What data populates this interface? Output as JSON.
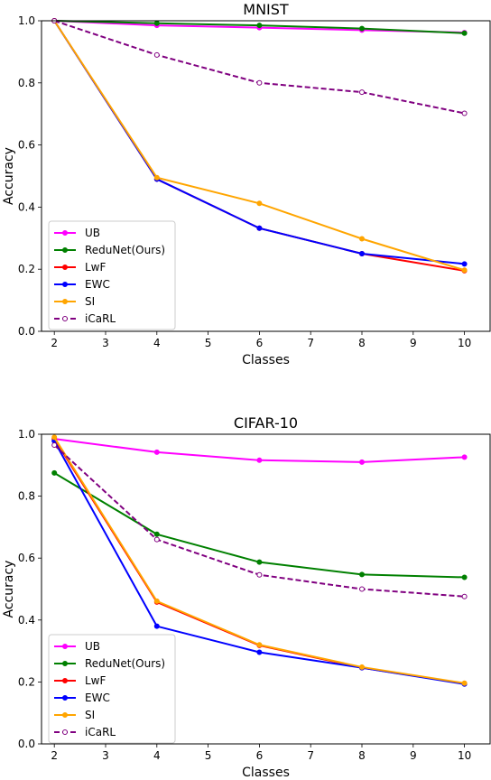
{
  "chart_data": [
    {
      "type": "line",
      "title": "MNIST",
      "xlabel": "Classes",
      "ylabel": "Accuracy",
      "x": [
        2,
        4,
        6,
        8,
        10
      ],
      "xlim": [
        1.75,
        10.5
      ],
      "ylim": [
        0.0,
        1.0
      ],
      "xticks": [
        2,
        3,
        4,
        5,
        6,
        7,
        8,
        9,
        10
      ],
      "yticks": [
        0.0,
        0.2,
        0.4,
        0.6,
        0.8,
        1.0
      ],
      "grid": false,
      "legend_position": "lower-left",
      "series": [
        {
          "name": "UB",
          "color": "#ff00ff",
          "dashed": false,
          "values": [
            1.0,
            0.985,
            0.978,
            0.97,
            0.962
          ]
        },
        {
          "name": "ReduNet(Ours)",
          "color": "#008000",
          "dashed": false,
          "values": [
            1.0,
            0.992,
            0.985,
            0.975,
            0.96
          ]
        },
        {
          "name": "LwF",
          "color": "#ff0000",
          "dashed": false,
          "values": [
            1.0,
            0.49,
            0.332,
            0.25,
            0.195
          ]
        },
        {
          "name": "EWC",
          "color": "#0000ff",
          "dashed": false,
          "values": [
            1.0,
            0.49,
            0.332,
            0.25,
            0.217
          ]
        },
        {
          "name": "SI",
          "color": "#ffa500",
          "dashed": false,
          "values": [
            1.0,
            0.495,
            0.412,
            0.298,
            0.197
          ]
        },
        {
          "name": "iCaRL",
          "color": "#800080",
          "dashed": true,
          "values": [
            1.0,
            0.89,
            0.8,
            0.77,
            0.702
          ]
        }
      ]
    },
    {
      "type": "line",
      "title": "CIFAR-10",
      "xlabel": "Classes",
      "ylabel": "Accuracy",
      "x": [
        2,
        4,
        6,
        8,
        10
      ],
      "xlim": [
        1.75,
        10.5
      ],
      "ylim": [
        0.0,
        1.0
      ],
      "xticks": [
        2,
        3,
        4,
        5,
        6,
        7,
        8,
        9,
        10
      ],
      "yticks": [
        0.0,
        0.2,
        0.4,
        0.6,
        0.8,
        1.0
      ],
      "grid": false,
      "legend_position": "lower-left",
      "series": [
        {
          "name": "UB",
          "color": "#ff00ff",
          "dashed": false,
          "values": [
            0.985,
            0.942,
            0.916,
            0.91,
            0.926
          ]
        },
        {
          "name": "ReduNet(Ours)",
          "color": "#008000",
          "dashed": false,
          "values": [
            0.875,
            0.677,
            0.587,
            0.547,
            0.538
          ]
        },
        {
          "name": "LwF",
          "color": "#ff0000",
          "dashed": false,
          "values": [
            0.985,
            0.458,
            0.318,
            0.246,
            0.195
          ]
        },
        {
          "name": "EWC",
          "color": "#0000ff",
          "dashed": false,
          "values": [
            0.978,
            0.38,
            0.296,
            0.246,
            0.193
          ]
        },
        {
          "name": "SI",
          "color": "#ffa500",
          "dashed": false,
          "values": [
            0.99,
            0.461,
            0.32,
            0.248,
            0.196
          ]
        },
        {
          "name": "iCaRL",
          "color": "#800080",
          "dashed": true,
          "values": [
            0.965,
            0.66,
            0.546,
            0.5,
            0.476
          ]
        }
      ]
    }
  ]
}
